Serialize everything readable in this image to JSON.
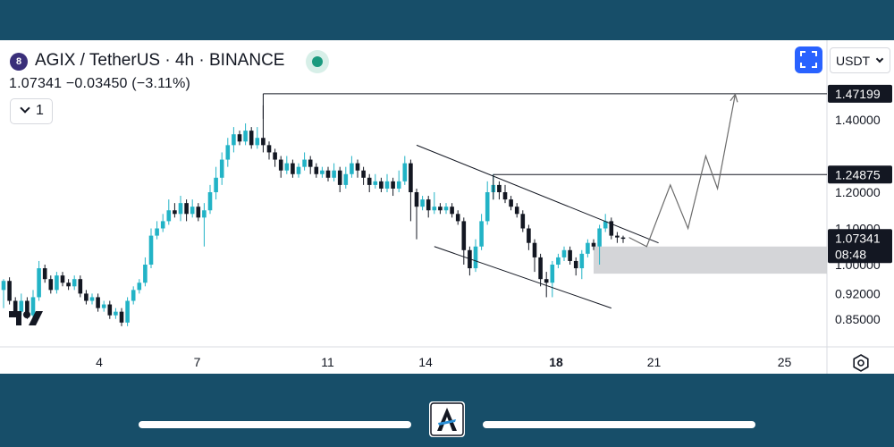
{
  "header": {
    "symbol_badge": "8",
    "symbol_title": "AGIX / TetherUS · 4h · BINANCE",
    "price_line": "1.07341  −0.03450 (−3.11%)",
    "indicator_count": "1",
    "currency": "USDT"
  },
  "colors": {
    "up": "#22b3c6",
    "down": "#131722",
    "accent": "#2962ff",
    "frame": "#174e69",
    "zone": "#cfd0d4"
  },
  "icons": [
    "fullscreen-icon",
    "chevron-down-icon",
    "settings-icon",
    "tradingview-logo-icon",
    "app-logo-icon"
  ],
  "chart_data": {
    "type": "candlestick",
    "symbol": "AGIX / TetherUS",
    "interval": "4h",
    "exchange": "BINANCE",
    "last_price": 1.07341,
    "change": -0.0345,
    "change_pct": -3.11,
    "countdown": "08:48",
    "ylim": [
      0.83,
      1.49
    ],
    "x_tick_positions": [
      4,
      7,
      11,
      14,
      18,
      21,
      25
    ],
    "x_ticks": [
      "4",
      "7",
      "11",
      "14",
      "18",
      "21",
      "25"
    ],
    "y_ticks": [
      "1.40000",
      "1.20000",
      "1.10000",
      "1.00000",
      "0.92000",
      "0.85000"
    ],
    "y_tick_values": [
      1.4,
      1.2,
      1.1,
      1.0,
      0.92,
      0.85
    ],
    "price_labels": [
      {
        "text": "1.47199",
        "value": 1.47199,
        "style": "black"
      },
      {
        "text": "1.24875",
        "value": 1.24875,
        "style": "black"
      },
      {
        "text": "1.07341",
        "value": 1.07341,
        "style": "black",
        "countdown": "08:48"
      }
    ],
    "candles": [
      [
        0.93,
        0.955,
        0.96,
        0.88
      ],
      [
        0.955,
        0.9,
        0.965,
        0.89
      ],
      [
        0.9,
        0.87,
        0.91,
        0.86
      ],
      [
        0.87,
        0.9,
        0.92,
        0.86
      ],
      [
        0.9,
        0.86,
        0.91,
        0.85
      ],
      [
        0.86,
        0.91,
        0.93,
        0.85
      ],
      [
        0.91,
        0.99,
        1.01,
        0.9
      ],
      [
        0.99,
        0.96,
        1.0,
        0.95
      ],
      [
        0.96,
        0.93,
        0.97,
        0.92
      ],
      [
        0.93,
        0.97,
        0.98,
        0.92
      ],
      [
        0.97,
        0.95,
        0.98,
        0.94
      ],
      [
        0.95,
        0.94,
        0.96,
        0.93
      ],
      [
        0.94,
        0.96,
        0.97,
        0.93
      ],
      [
        0.96,
        0.92,
        0.97,
        0.91
      ],
      [
        0.92,
        0.9,
        0.93,
        0.89
      ],
      [
        0.9,
        0.91,
        0.92,
        0.89
      ],
      [
        0.91,
        0.88,
        0.92,
        0.87
      ],
      [
        0.88,
        0.89,
        0.9,
        0.87
      ],
      [
        0.89,
        0.86,
        0.9,
        0.85
      ],
      [
        0.86,
        0.87,
        0.88,
        0.85
      ],
      [
        0.87,
        0.84,
        0.88,
        0.83
      ],
      [
        0.84,
        0.9,
        0.91,
        0.83
      ],
      [
        0.9,
        0.93,
        0.94,
        0.89
      ],
      [
        0.93,
        0.95,
        0.96,
        0.92
      ],
      [
        0.95,
        1.0,
        1.02,
        0.94
      ],
      [
        1.0,
        1.08,
        1.1,
        0.99
      ],
      [
        1.08,
        1.1,
        1.12,
        1.07
      ],
      [
        1.1,
        1.12,
        1.14,
        1.09
      ],
      [
        1.12,
        1.15,
        1.18,
        1.11
      ],
      [
        1.15,
        1.14,
        1.17,
        1.13
      ],
      [
        1.14,
        1.17,
        1.19,
        1.12
      ],
      [
        1.17,
        1.14,
        1.18,
        1.12
      ],
      [
        1.14,
        1.16,
        1.18,
        1.13
      ],
      [
        1.16,
        1.13,
        1.17,
        1.12
      ],
      [
        1.13,
        1.15,
        1.17,
        1.05
      ],
      [
        1.15,
        1.2,
        1.22,
        1.14
      ],
      [
        1.2,
        1.24,
        1.27,
        1.18
      ],
      [
        1.24,
        1.29,
        1.31,
        1.22
      ],
      [
        1.29,
        1.33,
        1.35,
        1.27
      ],
      [
        1.33,
        1.36,
        1.38,
        1.31
      ],
      [
        1.36,
        1.34,
        1.37,
        1.33
      ],
      [
        1.34,
        1.37,
        1.39,
        1.33
      ],
      [
        1.37,
        1.33,
        1.38,
        1.32
      ],
      [
        1.33,
        1.35,
        1.38,
        1.32
      ],
      [
        1.35,
        1.33,
        1.44,
        1.31
      ],
      [
        1.33,
        1.31,
        1.34,
        1.29
      ],
      [
        1.31,
        1.29,
        1.32,
        1.27
      ],
      [
        1.29,
        1.26,
        1.3,
        1.24
      ],
      [
        1.26,
        1.28,
        1.3,
        1.25
      ],
      [
        1.28,
        1.25,
        1.29,
        1.24
      ],
      [
        1.25,
        1.27,
        1.28,
        1.24
      ],
      [
        1.27,
        1.29,
        1.31,
        1.26
      ],
      [
        1.29,
        1.27,
        1.3,
        1.25
      ],
      [
        1.27,
        1.25,
        1.28,
        1.24
      ],
      [
        1.25,
        1.26,
        1.27,
        1.24
      ],
      [
        1.26,
        1.24,
        1.27,
        1.23
      ],
      [
        1.24,
        1.26,
        1.28,
        1.23
      ],
      [
        1.26,
        1.22,
        1.27,
        1.2
      ],
      [
        1.22,
        1.25,
        1.27,
        1.21
      ],
      [
        1.25,
        1.28,
        1.3,
        1.24
      ],
      [
        1.28,
        1.26,
        1.29,
        1.24
      ],
      [
        1.26,
        1.24,
        1.27,
        1.22
      ],
      [
        1.24,
        1.22,
        1.25,
        1.2
      ],
      [
        1.22,
        1.23,
        1.25,
        1.21
      ],
      [
        1.23,
        1.21,
        1.24,
        1.2
      ],
      [
        1.21,
        1.23,
        1.25,
        1.2
      ],
      [
        1.23,
        1.21,
        1.24,
        1.19
      ],
      [
        1.21,
        1.23,
        1.26,
        1.2
      ],
      [
        1.23,
        1.28,
        1.3,
        1.22
      ],
      [
        1.28,
        1.2,
        1.29,
        1.12
      ],
      [
        1.2,
        1.16,
        1.21,
        1.07
      ],
      [
        1.16,
        1.18,
        1.19,
        1.15
      ],
      [
        1.18,
        1.15,
        1.19,
        1.13
      ],
      [
        1.15,
        1.16,
        1.2,
        1.14
      ],
      [
        1.16,
        1.15,
        1.17,
        1.14
      ],
      [
        1.15,
        1.16,
        1.17,
        1.14
      ],
      [
        1.16,
        1.14,
        1.17,
        1.13
      ],
      [
        1.14,
        1.12,
        1.15,
        1.11
      ],
      [
        1.12,
        1.04,
        1.13,
        1.0
      ],
      [
        1.04,
        0.99,
        1.05,
        0.97
      ],
      [
        0.99,
        1.05,
        1.07,
        0.98
      ],
      [
        1.05,
        1.12,
        1.14,
        1.04
      ],
      [
        1.12,
        1.2,
        1.23,
        1.11
      ],
      [
        1.2,
        1.22,
        1.25,
        1.18
      ],
      [
        1.22,
        1.2,
        1.23,
        1.18
      ],
      [
        1.2,
        1.18,
        1.22,
        1.17
      ],
      [
        1.18,
        1.16,
        1.19,
        1.15
      ],
      [
        1.16,
        1.14,
        1.17,
        1.13
      ],
      [
        1.14,
        1.1,
        1.15,
        1.09
      ],
      [
        1.1,
        1.06,
        1.11,
        1.04
      ],
      [
        1.06,
        1.02,
        1.07,
        0.98
      ],
      [
        1.02,
        0.96,
        1.03,
        0.94
      ],
      [
        0.96,
        0.95,
        0.98,
        0.91
      ],
      [
        0.95,
        1.0,
        1.01,
        0.91
      ],
      [
        1.0,
        1.02,
        1.03,
        0.99
      ],
      [
        1.02,
        1.04,
        1.05,
        1.01
      ],
      [
        1.04,
        1.01,
        1.05,
        1.0
      ],
      [
        1.01,
        0.99,
        1.02,
        0.97
      ],
      [
        0.99,
        1.03,
        1.04,
        0.96
      ],
      [
        1.03,
        1.06,
        1.07,
        1.02
      ],
      [
        1.06,
        1.05,
        1.07,
        1.04
      ],
      [
        1.05,
        1.1,
        1.11,
        1.0
      ],
      [
        1.1,
        1.12,
        1.14,
        1.09
      ],
      [
        1.12,
        1.08,
        1.13,
        1.07
      ],
      [
        1.08,
        1.075,
        1.09,
        1.06
      ],
      [
        1.075,
        1.07341,
        1.08,
        1.06
      ]
    ],
    "drawings": [
      {
        "kind": "horizontal_ray",
        "value": 1.47199,
        "from_bar": 44
      },
      {
        "kind": "horizontal_ray",
        "value": 1.24875,
        "from_bar": 83
      },
      {
        "kind": "channel_upper",
        "points": [
          [
            70,
            1.33
          ],
          [
            111,
            1.06
          ]
        ]
      },
      {
        "kind": "channel_lower",
        "points": [
          [
            73,
            1.05
          ],
          [
            103,
            0.88
          ]
        ]
      },
      {
        "kind": "demand_zone",
        "from_bar": 100,
        "top": 1.05,
        "bottom": 0.975
      },
      {
        "kind": "projection_path",
        "points": [
          [
            106,
            1.075
          ],
          [
            109,
            1.05
          ],
          [
            113,
            1.22
          ],
          [
            116,
            1.1
          ],
          [
            119,
            1.3
          ],
          [
            121,
            1.21
          ],
          [
            124,
            1.47
          ]
        ]
      }
    ]
  }
}
